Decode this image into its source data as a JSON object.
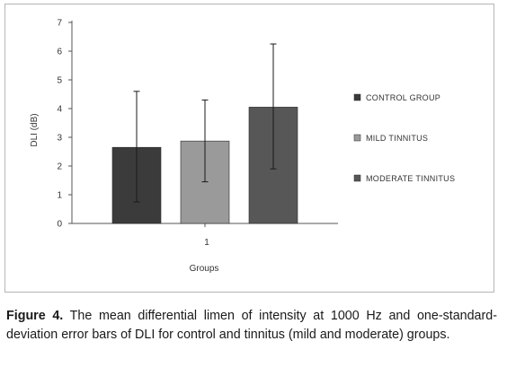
{
  "chart_data": {
    "type": "bar",
    "title": "",
    "xlabel": "Groups",
    "ylabel": "DLI (dB)",
    "categories": [
      "1"
    ],
    "ylim": [
      0,
      7
    ],
    "yticks": [
      "0",
      "1",
      "2",
      "3",
      "4",
      "5",
      "6",
      "7"
    ],
    "grid": false,
    "legend_position": "right",
    "series": [
      {
        "name": "CONTROL GROUP",
        "values": [
          2.65
        ],
        "error_low": [
          0.75
        ],
        "error_high": [
          4.6
        ],
        "color": "#3b3b3b"
      },
      {
        "name": "MILD TINNITUS",
        "values": [
          2.87
        ],
        "error_low": [
          1.45
        ],
        "error_high": [
          4.3
        ],
        "color": "#9a9a9a"
      },
      {
        "name": "MODERATE TINNITUS",
        "values": [
          4.05
        ],
        "error_low": [
          1.9
        ],
        "error_high": [
          6.25
        ],
        "color": "#575757"
      }
    ]
  },
  "caption": {
    "label": "Figure 4.",
    "text": " The mean differential limen of intensity at 1000 Hz and one-standard-deviation error bars of DLI for control and tinnitus (mild and moderate) groups."
  }
}
